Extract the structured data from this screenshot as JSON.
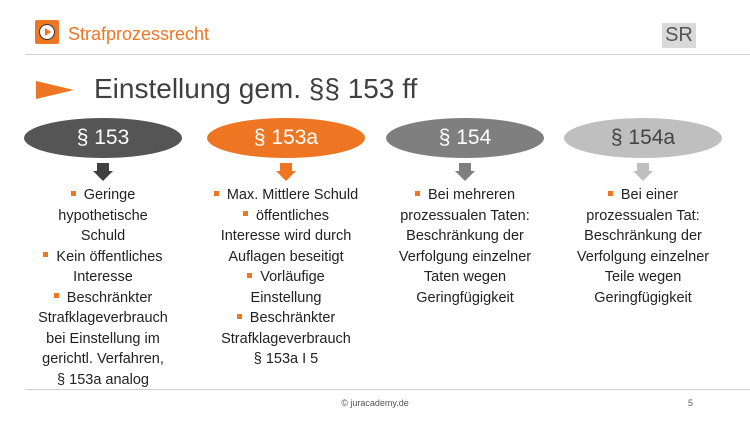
{
  "header": {
    "course_title": "Strafprozessrecht",
    "sr_label": "SR",
    "logo_icon": "play-icon",
    "accent_color": "#ee7623"
  },
  "slide": {
    "title": "Einstellung gem. §§ 153 ff"
  },
  "columns": [
    {
      "label": "§ 153",
      "color": "#555555",
      "arrow_color": "#404040",
      "bullets": [
        [
          "Geringe",
          "hypothetische",
          "Schuld"
        ],
        [
          "Kein öffentliches",
          "Interesse"
        ],
        [
          "Beschränkter",
          "Strafklageverbrauch",
          "bei Einstellung im",
          "gerichtl. Verfahren,",
          "§ 153a analog"
        ]
      ]
    },
    {
      "label": "§ 153a",
      "color": "#ee7623",
      "arrow_color": "#ee7623",
      "bullets": [
        [
          "Max. Mittlere Schuld"
        ],
        [
          "öffentliches",
          "Interesse wird durch",
          "Auflagen beseitigt"
        ],
        [
          "Vorläufige",
          "Einstellung"
        ],
        [
          "Beschränkter",
          "Strafklageverbrauch",
          "§ 153a I 5"
        ]
      ]
    },
    {
      "label": "§ 154",
      "color": "#7f7f7f",
      "arrow_color": "#7f7f7f",
      "bullets": [
        [
          "Bei mehreren",
          "prozessualen Taten:",
          "Beschränkung der",
          "Verfolgung einzelner",
          "Taten wegen",
          "Geringfügigkeit"
        ]
      ]
    },
    {
      "label": "§ 154a",
      "color": "#bfbfbf",
      "arrow_color": "#bfbfbf",
      "bullets": [
        [
          "Bei einer",
          "prozessualen Tat:",
          "Beschränkung der",
          "Verfolgung einzelner",
          "Teile wegen",
          "Geringfügigkeit"
        ]
      ]
    }
  ],
  "footer": {
    "copyright": "© juracademy.de",
    "page_number": "5"
  }
}
